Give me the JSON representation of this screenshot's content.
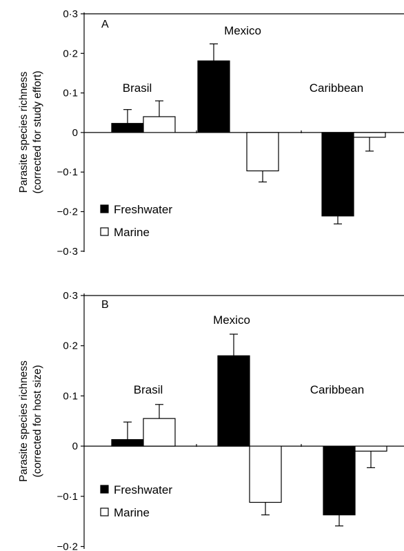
{
  "chart_data": [
    {
      "panel": "A",
      "type": "bar",
      "ylabel_line1": "Parasite species richness",
      "ylabel_line2": "(corrected for study effort)",
      "ylim": [
        -0.3,
        0.3
      ],
      "yticks": [
        0.3,
        0.2,
        0.1,
        0,
        -0.1,
        -0.2,
        -0.3
      ],
      "ytick_labels": [
        "0·3",
        "0·2",
        "0·1",
        "0",
        "−0·1",
        "−0·2",
        "−0·3"
      ],
      "categories": [
        "Brasil",
        "Mexico",
        "Caribbean"
      ],
      "series": [
        {
          "name": "Freshwater",
          "color": "#000000",
          "values": [
            0.023,
            0.181,
            -0.211
          ],
          "errors": [
            0.035,
            0.043,
            0.02
          ]
        },
        {
          "name": "Marine",
          "color": "#ffffff",
          "values": [
            0.04,
            -0.097,
            -0.012
          ],
          "errors": [
            0.04,
            0.028,
            0.035
          ]
        }
      ],
      "legend": "bottom-left",
      "grid": false
    },
    {
      "panel": "B",
      "type": "bar",
      "ylabel_line1": "Parasite species richness",
      "ylabel_line2": "(corrected for host size)",
      "ylim": [
        -0.2,
        0.3
      ],
      "yticks": [
        0.3,
        0.2,
        0.1,
        0,
        -0.1,
        -0.2
      ],
      "ytick_labels": [
        "0·3",
        "0·2",
        "0·1",
        "0",
        "−0·1",
        "−0·2"
      ],
      "categories": [
        "Brasil",
        "Mexico",
        "Caribbean"
      ],
      "series": [
        {
          "name": "Freshwater",
          "color": "#000000",
          "values": [
            0.013,
            0.18,
            -0.137
          ],
          "errors": [
            0.035,
            0.043,
            0.022
          ]
        },
        {
          "name": "Marine",
          "color": "#ffffff",
          "values": [
            0.055,
            -0.112,
            -0.01
          ],
          "errors": [
            0.028,
            0.025,
            0.033
          ]
        }
      ],
      "legend": "bottom-left",
      "grid": false
    }
  ]
}
